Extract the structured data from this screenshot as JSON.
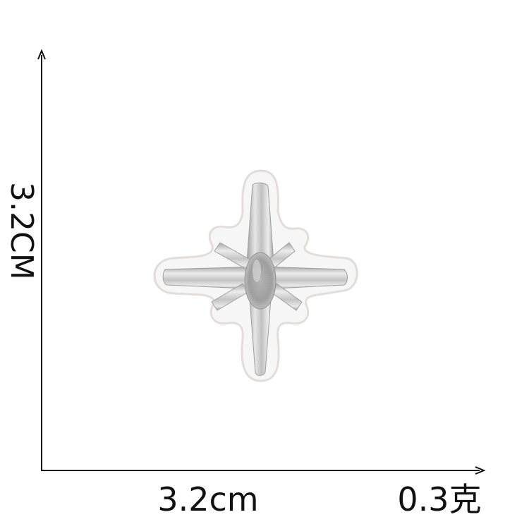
{
  "dimensions": {
    "height": "3.2CM",
    "width": "3.2cm",
    "weight": "0.3克"
  },
  "colors": {
    "background": "#ffffff",
    "axis": "#111111",
    "felt": "#f7f6f6",
    "felt_edge": "#e2dcd8",
    "silver_light": "#e9e9e9",
    "silver_mid": "#c4c4c4",
    "silver_dark": "#8d8d8d"
  },
  "product": {
    "subject": "silver embroidered four-point star patch on white felt backing"
  }
}
